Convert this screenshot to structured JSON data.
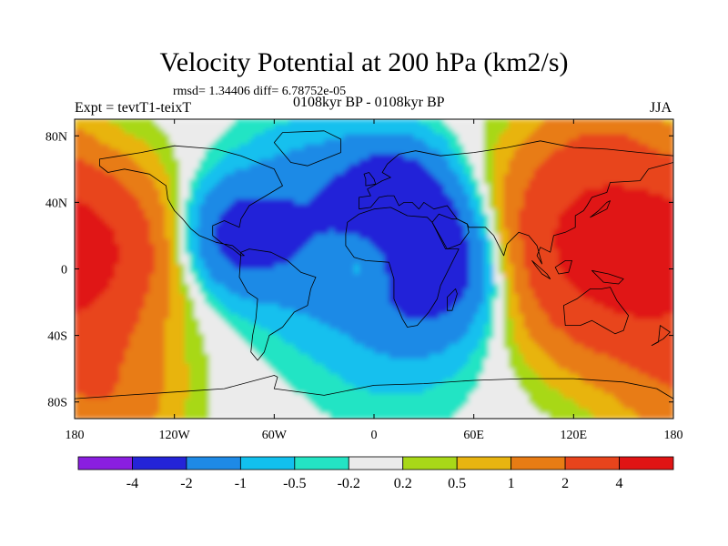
{
  "header": {
    "title": "Velocity Potential at 200 hPa (km2/s)",
    "stats": "rmsd= 1.34406 diff= 6.78752e-05",
    "left_label": "Expt = tevtT1-teixT",
    "center_label": "0108kyr BP - 0108kyr BP",
    "right_label": "JJA"
  },
  "chart_data": {
    "type": "heatmap",
    "title": "Velocity Potential at 200 hPa (km2/s)",
    "xlabel": "",
    "ylabel": "",
    "xlim": [
      -180,
      180
    ],
    "ylim": [
      -90,
      90
    ],
    "x_ticks": [
      {
        "value": -180,
        "label": "180"
      },
      {
        "value": -120,
        "label": "120W"
      },
      {
        "value": -60,
        "label": "60W"
      },
      {
        "value": 0,
        "label": "0"
      },
      {
        "value": 60,
        "label": "60E"
      },
      {
        "value": 120,
        "label": "120E"
      },
      {
        "value": 180,
        "label": "180"
      }
    ],
    "y_ticks": [
      {
        "value": 80,
        "label": "80N"
      },
      {
        "value": 40,
        "label": "40N"
      },
      {
        "value": 0,
        "label": "0"
      },
      {
        "value": -40,
        "label": "40S"
      },
      {
        "value": -80,
        "label": "80S"
      }
    ],
    "colorbar": {
      "boundaries": [
        "-4",
        "-2",
        "-1",
        "-0.5",
        "-0.2",
        "0.2",
        "0.5",
        "1",
        "2",
        "4"
      ],
      "colors": [
        "#8a1ee0",
        "#2424d8",
        "#1e8ae6",
        "#12c0ee",
        "#24e4c4",
        "#ebebeb",
        "#a8d818",
        "#e8b410",
        "#e87c14",
        "#e8441c",
        "#e01414"
      ]
    },
    "field_centers": [
      {
        "lon": 120,
        "lat": 20,
        "value": 3.4,
        "spread": 38
      },
      {
        "lon": -170,
        "lat": 15,
        "value": 3.2,
        "spread": 34
      },
      {
        "lon": 160,
        "lat": -15,
        "value": 2.2,
        "spread": 40
      },
      {
        "lon": 40,
        "lat": 5,
        "value": -3.1,
        "spread": 30
      },
      {
        "lon": 12,
        "lat": 45,
        "value": -2.6,
        "spread": 24
      },
      {
        "lon": -85,
        "lat": 20,
        "value": -2.3,
        "spread": 24
      },
      {
        "lon": -40,
        "lat": 50,
        "value": -1.1,
        "spread": 30
      },
      {
        "lon": -40,
        "lat": 0,
        "value": -0.9,
        "spread": 30
      },
      {
        "lon": 10,
        "lat": -40,
        "value": -0.7,
        "spread": 38
      },
      {
        "lon": -5,
        "lat": 5,
        "value": 1.3,
        "spread": 14
      },
      {
        "lon": 140,
        "lat": 75,
        "value": 1.0,
        "spread": 28
      },
      {
        "lon": -160,
        "lat": -80,
        "value": 1.5,
        "spread": 30
      }
    ]
  },
  "continents": [
    {
      "name": "North America",
      "pts": [
        [
          -165,
          66
        ],
        [
          -140,
          70
        ],
        [
          -120,
          74
        ],
        [
          -95,
          72
        ],
        [
          -80,
          68
        ],
        [
          -60,
          60
        ],
        [
          -55,
          50
        ],
        [
          -65,
          44
        ],
        [
          -75,
          38
        ],
        [
          -80,
          30
        ],
        [
          -81,
          25
        ],
        [
          -90,
          29
        ],
        [
          -97,
          26
        ],
        [
          -97,
          20
        ],
        [
          -92,
          16
        ],
        [
          -85,
          12
        ],
        [
          -80,
          8
        ],
        [
          -78,
          8
        ],
        [
          -85,
          14
        ],
        [
          -95,
          16
        ],
        [
          -105,
          20
        ],
        [
          -110,
          24
        ],
        [
          -115,
          30
        ],
        [
          -120,
          35
        ],
        [
          -124,
          42
        ],
        [
          -125,
          50
        ],
        [
          -135,
          57
        ],
        [
          -150,
          60
        ],
        [
          -160,
          58
        ],
        [
          -165,
          62
        ]
      ]
    },
    {
      "name": "Greenland",
      "pts": [
        [
          -55,
          82
        ],
        [
          -30,
          83
        ],
        [
          -20,
          78
        ],
        [
          -20,
          70
        ],
        [
          -40,
          62
        ],
        [
          -50,
          64
        ],
        [
          -55,
          70
        ],
        [
          -60,
          76
        ]
      ]
    },
    {
      "name": "South America",
      "pts": [
        [
          -80,
          10
        ],
        [
          -75,
          12
        ],
        [
          -62,
          10
        ],
        [
          -52,
          5
        ],
        [
          -44,
          -2
        ],
        [
          -35,
          -5
        ],
        [
          -38,
          -12
        ],
        [
          -40,
          -22
        ],
        [
          -48,
          -26
        ],
        [
          -55,
          -35
        ],
        [
          -63,
          -40
        ],
        [
          -66,
          -50
        ],
        [
          -70,
          -55
        ],
        [
          -74,
          -50
        ],
        [
          -73,
          -40
        ],
        [
          -71,
          -30
        ],
        [
          -70,
          -18
        ],
        [
          -76,
          -14
        ],
        [
          -81,
          -5
        ]
      ]
    },
    {
      "name": "Africa",
      "pts": [
        [
          -17,
          21
        ],
        [
          -16,
          28
        ],
        [
          -9,
          33
        ],
        [
          0,
          36
        ],
        [
          10,
          37
        ],
        [
          20,
          32
        ],
        [
          32,
          31
        ],
        [
          35,
          28
        ],
        [
          43,
          12
        ],
        [
          51,
          12
        ],
        [
          44,
          -2
        ],
        [
          40,
          -10
        ],
        [
          38,
          -18
        ],
        [
          33,
          -26
        ],
        [
          26,
          -34
        ],
        [
          20,
          -35
        ],
        [
          17,
          -30
        ],
        [
          12,
          -18
        ],
        [
          12,
          -6
        ],
        [
          9,
          4
        ],
        [
          -5,
          5
        ],
        [
          -12,
          7
        ],
        [
          -17,
          14
        ]
      ]
    },
    {
      "name": "Eurasia",
      "pts": [
        [
          -9,
          36
        ],
        [
          -9,
          43
        ],
        [
          -2,
          44
        ],
        [
          -4,
          48
        ],
        [
          5,
          53
        ],
        [
          10,
          55
        ],
        [
          5,
          58
        ],
        [
          8,
          63
        ],
        [
          15,
          69
        ],
        [
          25,
          71
        ],
        [
          40,
          68
        ],
        [
          60,
          70
        ],
        [
          80,
          73
        ],
        [
          100,
          77
        ],
        [
          120,
          73
        ],
        [
          140,
          72
        ],
        [
          160,
          70
        ],
        [
          180,
          68
        ],
        [
          180,
          64
        ],
        [
          165,
          60
        ],
        [
          160,
          53
        ],
        [
          142,
          52
        ],
        [
          140,
          46
        ],
        [
          131,
          43
        ],
        [
          128,
          38
        ],
        [
          126,
          35
        ],
        [
          121,
          32
        ],
        [
          121,
          25
        ],
        [
          115,
          22
        ],
        [
          108,
          20
        ],
        [
          106,
          10
        ],
        [
          100,
          13
        ],
        [
          98,
          8
        ],
        [
          101,
          3
        ],
        [
          98,
          14
        ],
        [
          93,
          20
        ],
        [
          87,
          22
        ],
        [
          80,
          15
        ],
        [
          78,
          8
        ],
        [
          72,
          20
        ],
        [
          67,
          25
        ],
        [
          57,
          25
        ],
        [
          56,
          27
        ],
        [
          50,
          30
        ],
        [
          44,
          38
        ],
        [
          36,
          36
        ],
        [
          30,
          40
        ],
        [
          27,
          36
        ],
        [
          23,
          40
        ],
        [
          18,
          40
        ],
        [
          15,
          38
        ],
        [
          12,
          44
        ],
        [
          8,
          44
        ],
        [
          3,
          43
        ],
        [
          -2,
          37
        ]
      ]
    },
    {
      "name": "Arabia",
      "pts": [
        [
          35,
          28
        ],
        [
          44,
          12
        ],
        [
          52,
          15
        ],
        [
          57,
          22
        ],
        [
          56,
          27
        ],
        [
          50,
          30
        ],
        [
          47,
          30
        ],
        [
          39,
          33
        ]
      ]
    },
    {
      "name": "Britain",
      "pts": [
        [
          -5,
          50
        ],
        [
          1,
          51
        ],
        [
          0,
          54
        ],
        [
          -3,
          58
        ],
        [
          -6,
          57
        ],
        [
          -5,
          54
        ]
      ]
    },
    {
      "name": "Madagascar",
      "pts": [
        [
          44,
          -25
        ],
        [
          47,
          -25
        ],
        [
          50,
          -15
        ],
        [
          49,
          -12
        ],
        [
          44,
          -17
        ]
      ]
    },
    {
      "name": "Australia",
      "pts": [
        [
          114,
          -22
        ],
        [
          122,
          -18
        ],
        [
          130,
          -12
        ],
        [
          137,
          -12
        ],
        [
          142,
          -11
        ],
        [
          146,
          -19
        ],
        [
          153,
          -28
        ],
        [
          150,
          -37
        ],
        [
          145,
          -39
        ],
        [
          138,
          -35
        ],
        [
          131,
          -31
        ],
        [
          124,
          -34
        ],
        [
          115,
          -34
        ]
      ]
    },
    {
      "name": "New Guinea",
      "pts": [
        [
          131,
          -1
        ],
        [
          141,
          -3
        ],
        [
          150,
          -6
        ],
        [
          147,
          -9
        ],
        [
          138,
          -8
        ]
      ]
    },
    {
      "name": "Borneo",
      "pts": [
        [
          109,
          1
        ],
        [
          115,
          5
        ],
        [
          119,
          5
        ],
        [
          117,
          -2
        ],
        [
          111,
          -3
        ]
      ]
    },
    {
      "name": "Sumatra",
      "pts": [
        [
          95,
          5
        ],
        [
          104,
          -3
        ],
        [
          106,
          -6
        ],
        [
          101,
          -3
        ],
        [
          97,
          2
        ]
      ]
    },
    {
      "name": "Japan",
      "pts": [
        [
          130,
          31
        ],
        [
          136,
          34
        ],
        [
          140,
          36
        ],
        [
          142,
          41
        ],
        [
          140,
          40
        ],
        [
          135,
          35
        ]
      ]
    },
    {
      "name": "New Zealand",
      "pts": [
        [
          172,
          -34
        ],
        [
          178,
          -38
        ],
        [
          174,
          -42
        ],
        [
          167,
          -46
        ],
        [
          171,
          -44
        ]
      ]
    },
    {
      "name": "Antarctica",
      "pts": [
        [
          -180,
          -78
        ],
        [
          -150,
          -76
        ],
        [
          -120,
          -74
        ],
        [
          -90,
          -72
        ],
        [
          -60,
          -64
        ],
        [
          -58,
          -65
        ],
        [
          -60,
          -72
        ],
        [
          -30,
          -76
        ],
        [
          0,
          -70
        ],
        [
          30,
          -69
        ],
        [
          60,
          -67
        ],
        [
          90,
          -66
        ],
        [
          120,
          -66
        ],
        [
          150,
          -68
        ],
        [
          170,
          -72
        ],
        [
          180,
          -78
        ],
        [
          180,
          -90
        ],
        [
          -180,
          -90
        ]
      ]
    }
  ]
}
